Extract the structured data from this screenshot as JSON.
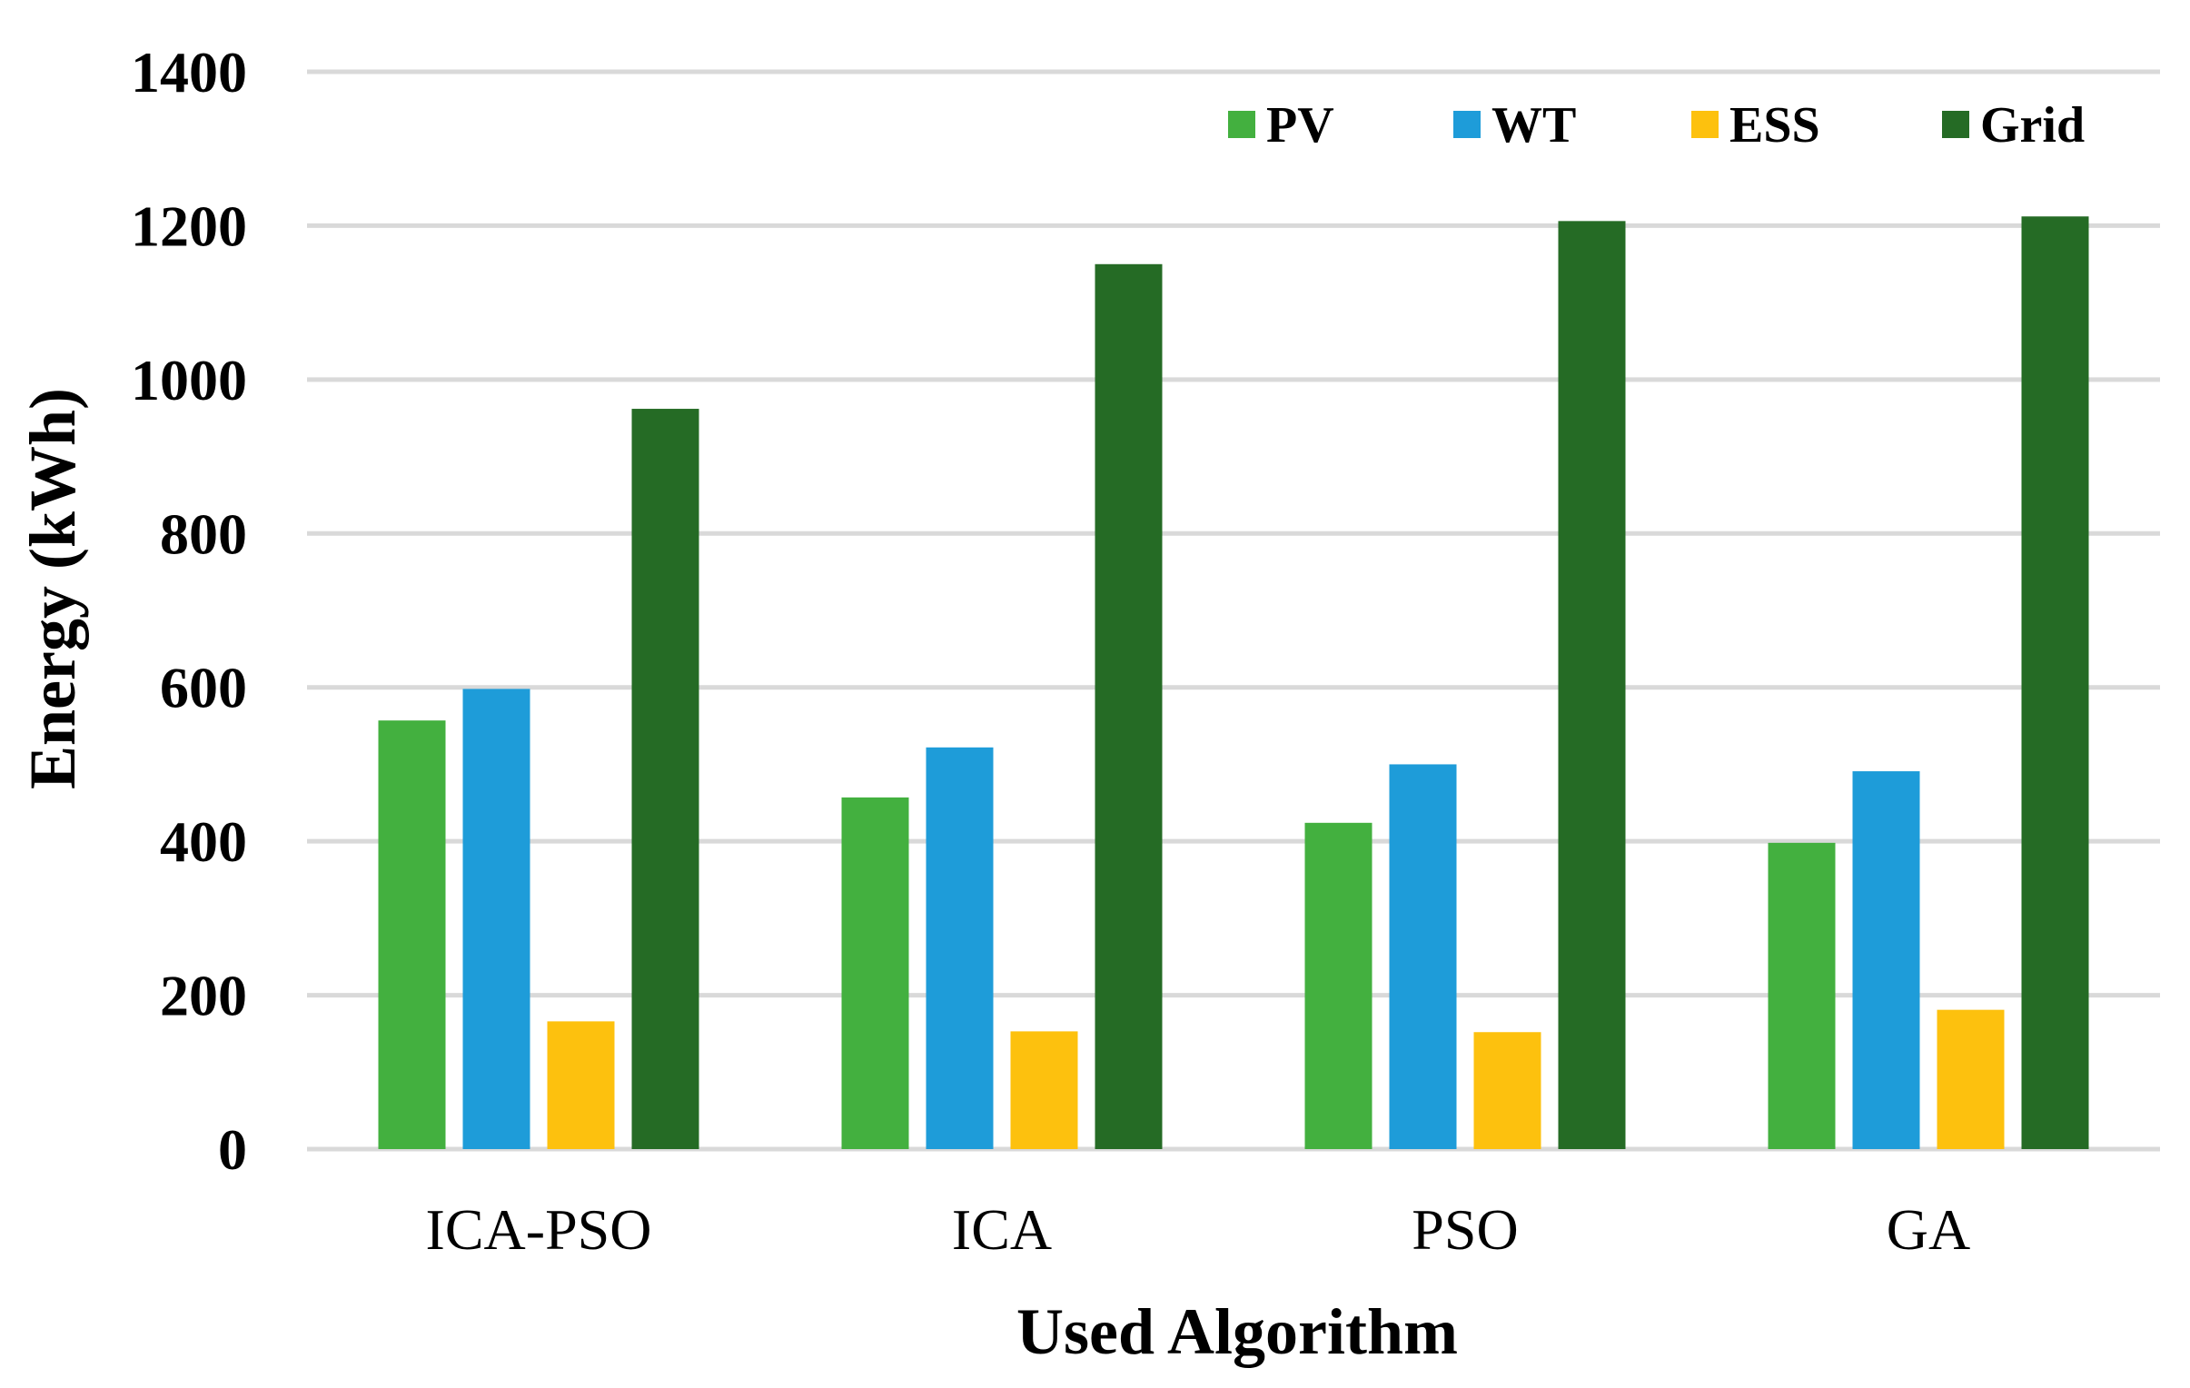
{
  "chart_data": {
    "type": "bar",
    "title": "",
    "xlabel": "Used Algorithm",
    "ylabel": "Energy (kWh)",
    "ylim": [
      0,
      1400
    ],
    "yticks": [
      0,
      200,
      400,
      600,
      800,
      1000,
      1200,
      1400
    ],
    "grid": true,
    "legend_position": "top-right",
    "categories": [
      "ICA-PSO",
      "ICA",
      "PSO",
      "GA"
    ],
    "series": [
      {
        "name": "PV",
        "color": "#43B03F",
        "values": [
          557,
          457,
          424,
          398
        ]
      },
      {
        "name": "WT",
        "color": "#1E9CD9",
        "values": [
          598,
          522,
          500,
          491
        ]
      },
      {
        "name": "ESS",
        "color": "#FDC10E",
        "values": [
          166,
          153,
          152,
          181
        ]
      },
      {
        "name": "Grid",
        "color": "#256B25",
        "values": [
          962,
          1150,
          1206,
          1212
        ]
      }
    ]
  }
}
